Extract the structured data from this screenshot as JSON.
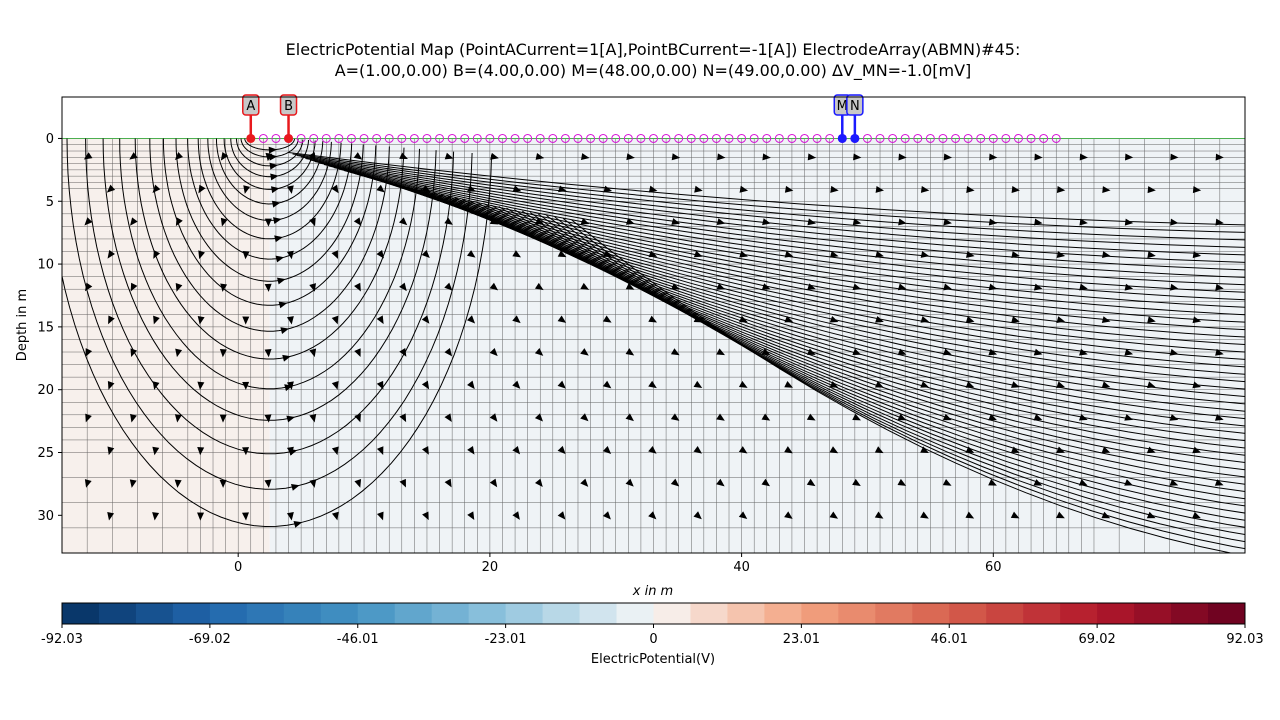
{
  "chart_data": {
    "type": "heatmap",
    "title_line1": "ElectricPotential Map (PointACurrent=1[A],PointBCurrent=-1[A]) ElectrodeArray(ABMN)#45:",
    "title_line2": "A=(1.00,0.00) B=(4.00,0.00) M=(48.00,0.00) N=(49.00,0.00) ΔV_MN=-1.0[mV]",
    "xlabel": "x in m",
    "ylabel": "Depth in m",
    "xlim": [
      -14,
      80
    ],
    "ylim": [
      33,
      -3.3
    ],
    "xticks": [
      "0",
      "20",
      "40",
      "60"
    ],
    "xtick_values": [
      0,
      20,
      40,
      60
    ],
    "yticks": [
      "0",
      "5",
      "10",
      "15",
      "20",
      "25",
      "30"
    ],
    "ytick_values": [
      0,
      5,
      10,
      15,
      20,
      25,
      30
    ],
    "electrodes": [
      {
        "label": "A",
        "x": 1,
        "y": 0,
        "color": "#e8191d"
      },
      {
        "label": "B",
        "x": 4,
        "y": 0,
        "color": "#e8191d"
      },
      {
        "label": "M",
        "x": 48,
        "y": 0,
        "color": "#1a1aff"
      },
      {
        "label": "N",
        "x": 49,
        "y": 0,
        "color": "#1a1aff"
      }
    ],
    "sensor_x_start": 2,
    "sensor_x_end": 65,
    "sensor_spacing": 1,
    "sensor_color": "#d614d6",
    "colorbar": {
      "label": "ElectricPotential(V)",
      "ticks": [
        "-92.03",
        "-69.02",
        "-46.01",
        "-23.01",
        "0",
        "23.01",
        "46.01",
        "69.02",
        "92.03"
      ],
      "min": -92.03,
      "max": 92.03,
      "colormap": "RdBu_r",
      "bins": 32
    },
    "left_region_color": "#f7f0ec",
    "right_region_color": "#eff3f6",
    "region_boundary_x": 2.5,
    "grid": true,
    "mesh_color": "#333333"
  }
}
